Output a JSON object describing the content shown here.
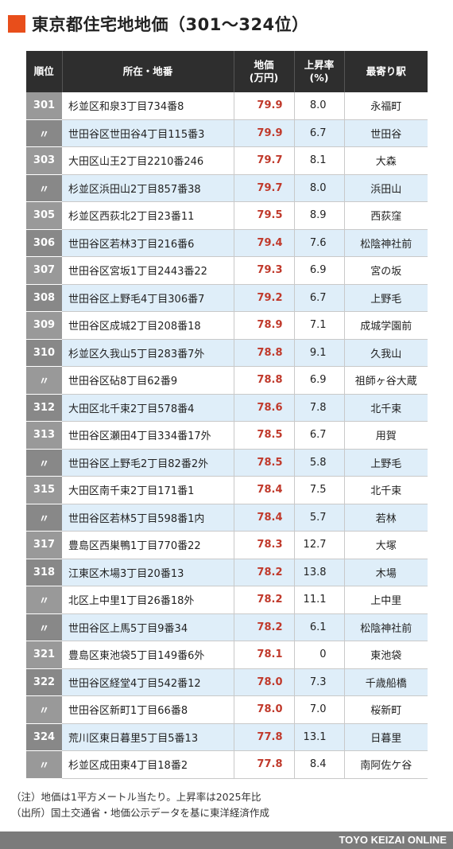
{
  "title": "東京都住宅地地価（301〜324位）",
  "accent_color": "#e84e1b",
  "price_color": "#c0392b",
  "headers": {
    "rank": "順位",
    "location": "所在・地番",
    "price_line1": "地価",
    "price_line2": "(万円)",
    "rate_line1": "上昇率",
    "rate_line2": "(%)",
    "station": "最寄り駅"
  },
  "chart_data": {
    "type": "table",
    "columns": [
      "順位",
      "所在・地番",
      "地価(万円)",
      "上昇率(%)",
      "最寄り駅"
    ],
    "rows": [
      {
        "rank": "301",
        "location": "杉並区和泉3丁目734番8",
        "price": "79.9",
        "rate": "8.0",
        "station": "永福町"
      },
      {
        "rank": "〃",
        "location": "世田谷区世田谷4丁目115番3",
        "price": "79.9",
        "rate": "6.7",
        "station": "世田谷"
      },
      {
        "rank": "303",
        "location": "大田区山王2丁目2210番246",
        "price": "79.7",
        "rate": "8.1",
        "station": "大森"
      },
      {
        "rank": "〃",
        "location": "杉並区浜田山2丁目857番38",
        "price": "79.7",
        "rate": "8.0",
        "station": "浜田山"
      },
      {
        "rank": "305",
        "location": "杉並区西荻北2丁目23番11",
        "price": "79.5",
        "rate": "8.9",
        "station": "西荻窪"
      },
      {
        "rank": "306",
        "location": "世田谷区若林3丁目216番6",
        "price": "79.4",
        "rate": "7.6",
        "station": "松陰神社前"
      },
      {
        "rank": "307",
        "location": "世田谷区宮坂1丁目2443番22",
        "price": "79.3",
        "rate": "6.9",
        "station": "宮の坂"
      },
      {
        "rank": "308",
        "location": "世田谷区上野毛4丁目306番7",
        "price": "79.2",
        "rate": "6.7",
        "station": "上野毛"
      },
      {
        "rank": "309",
        "location": "世田谷区成城2丁目208番18",
        "price": "78.9",
        "rate": "7.1",
        "station": "成城学園前"
      },
      {
        "rank": "310",
        "location": "杉並区久我山5丁目283番7外",
        "price": "78.8",
        "rate": "9.1",
        "station": "久我山"
      },
      {
        "rank": "〃",
        "location": "世田谷区砧8丁目62番9",
        "price": "78.8",
        "rate": "6.9",
        "station": "祖師ヶ谷大蔵"
      },
      {
        "rank": "312",
        "location": "大田区北千束2丁目578番4",
        "price": "78.6",
        "rate": "7.8",
        "station": "北千束"
      },
      {
        "rank": "313",
        "location": "世田谷区瀬田4丁目334番17外",
        "price": "78.5",
        "rate": "6.7",
        "station": "用賀"
      },
      {
        "rank": "〃",
        "location": "世田谷区上野毛2丁目82番2外",
        "price": "78.5",
        "rate": "5.8",
        "station": "上野毛"
      },
      {
        "rank": "315",
        "location": "大田区南千束2丁目171番1",
        "price": "78.4",
        "rate": "7.5",
        "station": "北千束"
      },
      {
        "rank": "〃",
        "location": "世田谷区若林5丁目598番1内",
        "price": "78.4",
        "rate": "5.7",
        "station": "若林"
      },
      {
        "rank": "317",
        "location": "豊島区西巣鴨1丁目770番22",
        "price": "78.3",
        "rate": "12.7",
        "station": "大塚"
      },
      {
        "rank": "318",
        "location": "江東区木場3丁目20番13",
        "price": "78.2",
        "rate": "13.8",
        "station": "木場"
      },
      {
        "rank": "〃",
        "location": "北区上中里1丁目26番18外",
        "price": "78.2",
        "rate": "11.1",
        "station": "上中里"
      },
      {
        "rank": "〃",
        "location": "世田谷区上馬5丁目9番34",
        "price": "78.2",
        "rate": "6.1",
        "station": "松陰神社前"
      },
      {
        "rank": "321",
        "location": "豊島区東池袋5丁目149番6外",
        "price": "78.1",
        "rate": "0",
        "station": "東池袋"
      },
      {
        "rank": "322",
        "location": "世田谷区経堂4丁目542番12",
        "price": "78.0",
        "rate": "7.3",
        "station": "千歳船橋"
      },
      {
        "rank": "〃",
        "location": "世田谷区新町1丁目66番8",
        "price": "78.0",
        "rate": "7.0",
        "station": "桜新町"
      },
      {
        "rank": "324",
        "location": "荒川区東日暮里5丁目5番13",
        "price": "77.8",
        "rate": "13.1",
        "station": "日暮里"
      },
      {
        "rank": "〃",
        "location": "杉並区成田東4丁目18番2",
        "price": "77.8",
        "rate": "8.4",
        "station": "南阿佐ケ谷"
      }
    ]
  },
  "notes": {
    "note": "（注）地価は1平方メートル当たり。上昇率は2025年比",
    "source": "（出所）国土交通省・地価公示データを基に東洋経済作成"
  },
  "footer": "TOYO KEIZAI ONLINE"
}
